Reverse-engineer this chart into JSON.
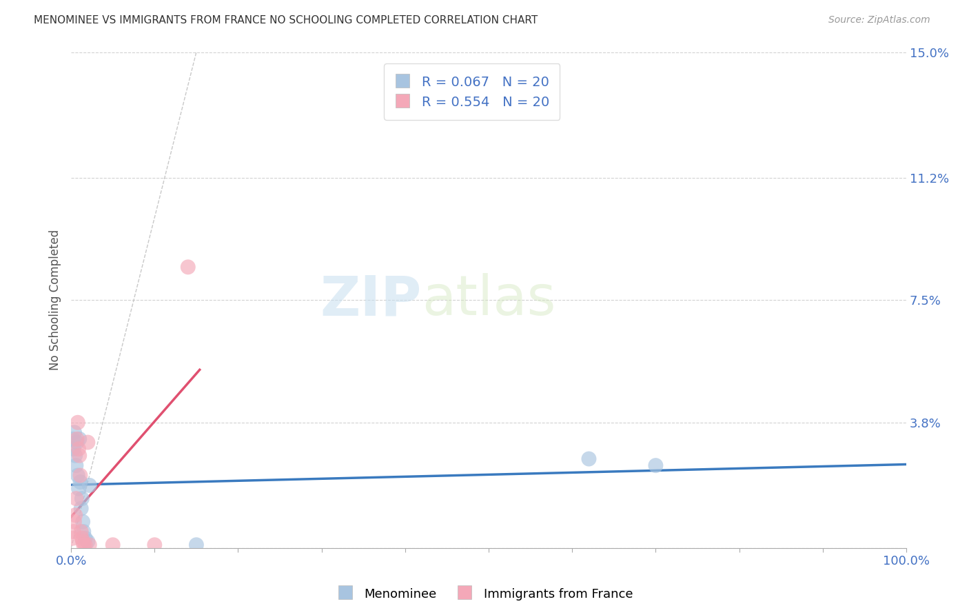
{
  "title": "MENOMINEE VS IMMIGRANTS FROM FRANCE NO SCHOOLING COMPLETED CORRELATION CHART",
  "source": "Source: ZipAtlas.com",
  "ylabel": "No Schooling Completed",
  "xlim": [
    0,
    1.0
  ],
  "ylim": [
    0,
    0.15
  ],
  "yticks": [
    0,
    0.038,
    0.075,
    0.112,
    0.15
  ],
  "ytick_labels": [
    "",
    "3.8%",
    "7.5%",
    "11.2%",
    "15.0%"
  ],
  "xticks": [
    0,
    0.1,
    0.2,
    0.3,
    0.4,
    0.5,
    0.6,
    0.7,
    0.8,
    0.9,
    1.0
  ],
  "xtick_labels": [
    "0.0%",
    "",
    "",
    "",
    "",
    "",
    "",
    "",
    "",
    "",
    "100.0%"
  ],
  "background_color": "#ffffff",
  "grid_color": "#cccccc",
  "menominee_color": "#a8c4e0",
  "france_color": "#f4a8b8",
  "menominee_line_color": "#3a7abf",
  "france_line_color": "#e05070",
  "diagonal_color": "#cccccc",
  "watermark_zip": "ZIP",
  "watermark_atlas": "atlas",
  "bottom_legend_menominee": "Menominee",
  "bottom_legend_france": "Immigrants from France",
  "menominee_x": [
    0.002,
    0.003,
    0.004,
    0.005,
    0.006,
    0.007,
    0.008,
    0.009,
    0.01,
    0.011,
    0.012,
    0.013,
    0.014,
    0.015,
    0.017,
    0.02,
    0.022,
    0.15,
    0.62,
    0.7
  ],
  "menominee_y": [
    0.033,
    0.03,
    0.035,
    0.028,
    0.025,
    0.032,
    0.022,
    0.018,
    0.033,
    0.02,
    0.012,
    0.015,
    0.008,
    0.005,
    0.003,
    0.002,
    0.019,
    0.001,
    0.027,
    0.025
  ],
  "france_x": [
    0.002,
    0.003,
    0.004,
    0.005,
    0.006,
    0.007,
    0.008,
    0.009,
    0.01,
    0.011,
    0.012,
    0.013,
    0.014,
    0.015,
    0.017,
    0.02,
    0.022,
    0.05,
    0.1,
    0.14
  ],
  "france_y": [
    0.003,
    0.005,
    0.008,
    0.01,
    0.015,
    0.033,
    0.038,
    0.03,
    0.028,
    0.022,
    0.005,
    0.003,
    0.002,
    0.001,
    0.001,
    0.032,
    0.001,
    0.001,
    0.001,
    0.085
  ],
  "menominee_R": 0.067,
  "france_R": 0.554,
  "menominee_N": 20,
  "france_N": 20
}
